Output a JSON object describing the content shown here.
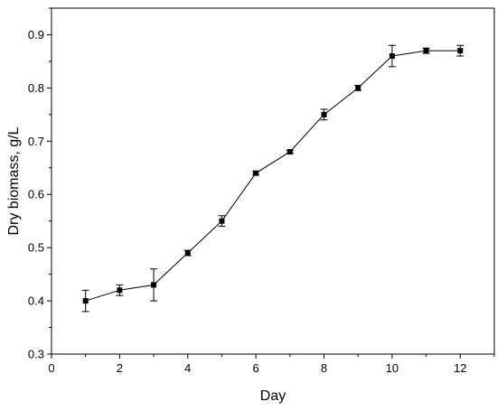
{
  "chart_data": {
    "type": "line",
    "xlabel": "Day",
    "ylabel": "Dry biomass, g/L",
    "xlim": [
      0,
      13
    ],
    "ylim": [
      0.3,
      0.95
    ],
    "xticks": [
      0,
      2,
      4,
      6,
      8,
      10,
      12
    ],
    "xtick_labels": [
      "0",
      "2",
      "4",
      "6",
      "8",
      "10",
      "12"
    ],
    "yticks": [
      0.3,
      0.4,
      0.5,
      0.6,
      0.7,
      0.8,
      0.9
    ],
    "ytick_labels": [
      "0.3",
      "0.4",
      "0.5",
      "0.6",
      "0.7",
      "0.8",
      "0.9"
    ],
    "grid": false,
    "marker": "square",
    "series": [
      {
        "x": [
          1,
          2,
          3,
          4,
          5,
          6,
          7,
          8,
          9,
          10,
          11,
          12
        ],
        "y": [
          0.4,
          0.42,
          0.43,
          0.49,
          0.55,
          0.64,
          0.68,
          0.75,
          0.8,
          0.86,
          0.87,
          0.87
        ],
        "yerr": [
          0.02,
          0.01,
          0.03,
          0.005,
          0.01,
          0.003,
          0.003,
          0.01,
          0.005,
          0.02,
          0.005,
          0.01
        ],
        "color": "#000000"
      }
    ]
  }
}
